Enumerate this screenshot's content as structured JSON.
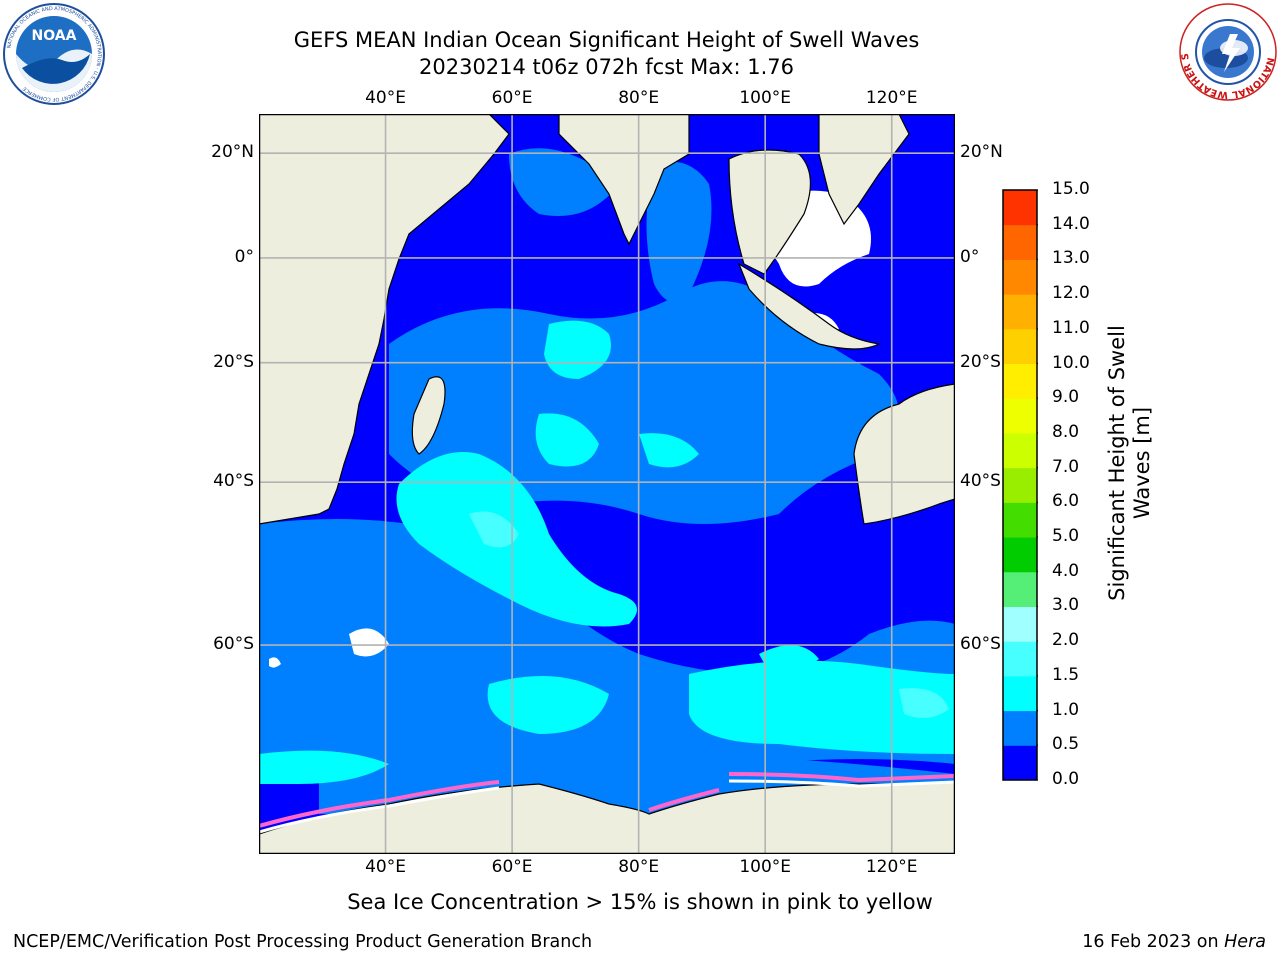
{
  "header": {
    "title": "GEFS MEAN Indian Ocean Significant Height of Swell Waves",
    "subtitle": "20230214 t06z 072h fcst   Max: 1.76"
  },
  "logos": {
    "noaa": "NOAA",
    "noaa_ring_text": "NATIONAL OCEANIC AND ATMOSPHERIC ADMINISTRATION · U.S. DEPARTMENT OF COMMERCE",
    "nws_ring_text": "NATIONAL WEATHER SERVICE"
  },
  "map": {
    "lon_labels": [
      "40°E",
      "60°E",
      "80°E",
      "100°E",
      "120°E"
    ],
    "lat_labels": [
      "20°N",
      "0°",
      "20°S",
      "40°S",
      "60°S"
    ],
    "extent": {
      "lon": [
        20,
        130
      ],
      "lat": [
        -75,
        27
      ]
    },
    "colors": {
      "land": "#eeeedf",
      "grid": "#b3b3b3",
      "ice": "#ff66cc"
    }
  },
  "colorbar": {
    "label_line1": "Significant Height of Swell",
    "label_line2": "Waves [m]",
    "ticks": [
      "15.0",
      "14.0",
      "13.0",
      "12.0",
      "11.0",
      "10.0",
      "9.0",
      "8.0",
      "7.0",
      "6.0",
      "5.0",
      "4.0",
      "3.0",
      "2.0",
      "1.5",
      "1.0",
      "0.5",
      "0.0"
    ],
    "colors": [
      "#0000ff",
      "#0080ff",
      "#00ffff",
      "#48ffff",
      "#a0ffff",
      "#55ee77",
      "#00cc00",
      "#44dd00",
      "#99ee00",
      "#ccff00",
      "#eeff00",
      "#ffee00",
      "#ffd000",
      "#ffb000",
      "#ff8800",
      "#ff6600",
      "#ff3300"
    ]
  },
  "caption": "Sea Ice Concentration > 15% is shown in pink to yellow",
  "footer": {
    "left": "NCEP/EMC/Verification Post Processing Product Generation Branch",
    "right_prefix": "16 Feb 2023 on ",
    "right_host": "Hera"
  }
}
